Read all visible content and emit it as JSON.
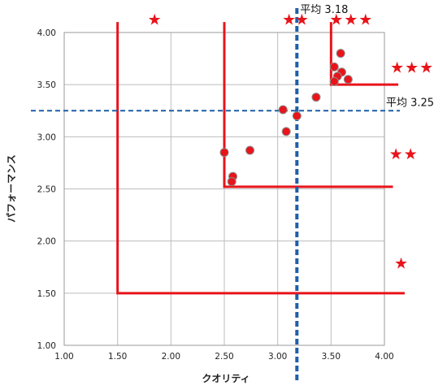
{
  "chart_data": {
    "type": "scatter",
    "xlabel": "クオリティ",
    "ylabel": "パフォーマンス",
    "xlim": [
      1.0,
      4.0
    ],
    "ylim": [
      1.0,
      4.0
    ],
    "x_ticks": [
      "1.00",
      "1.50",
      "2.00",
      "2.50",
      "3.00",
      "3.50",
      "4.00"
    ],
    "y_ticks": [
      "1.00",
      "1.50",
      "2.00",
      "2.50",
      "3.00",
      "3.50",
      "4.00"
    ],
    "grid": true,
    "points": [
      {
        "x": 2.5,
        "y": 2.85
      },
      {
        "x": 2.58,
        "y": 2.62
      },
      {
        "x": 2.57,
        "y": 2.57
      },
      {
        "x": 2.74,
        "y": 2.87
      },
      {
        "x": 3.05,
        "y": 3.26
      },
      {
        "x": 3.08,
        "y": 3.05
      },
      {
        "x": 3.18,
        "y": 3.2
      },
      {
        "x": 3.36,
        "y": 3.38
      },
      {
        "x": 3.53,
        "y": 3.67
      },
      {
        "x": 3.59,
        "y": 3.8
      },
      {
        "x": 3.6,
        "y": 3.62
      },
      {
        "x": 3.56,
        "y": 3.58
      },
      {
        "x": 3.66,
        "y": 3.55
      },
      {
        "x": 3.53,
        "y": 3.53
      }
    ],
    "point_color": "#e8141a",
    "average_lines": [
      {
        "orientation": "vertical",
        "value": 3.18,
        "label": "平均 3.18",
        "color": "#1f5fa8"
      },
      {
        "orientation": "horizontal",
        "value": 3.25,
        "label": "平均 3.25",
        "color": "#1f5fa8"
      }
    ],
    "zone_lines": [
      {
        "x": 1.5,
        "y": 1.5,
        "x_end": 4.19,
        "y_top": 4.1
      },
      {
        "x": 2.5,
        "y": 2.52,
        "x_end": 4.08,
        "y_top": 4.1
      },
      {
        "x": 3.5,
        "y": 3.5,
        "x_end": 4.13,
        "y_top": 4.1
      }
    ],
    "zone_line_color": "#e8141a",
    "ratings": [
      {
        "stars": "★",
        "x": 1.85,
        "y": 4.13
      },
      {
        "stars": "★",
        "x": 3.11,
        "y": 4.13
      },
      {
        "stars": "★",
        "x": 3.23,
        "y": 4.13
      },
      {
        "stars": "★★★",
        "x": 3.69,
        "y": 4.13
      },
      {
        "stars": "★★★",
        "x": 4.26,
        "y": 3.67
      },
      {
        "stars": "★★",
        "x": 4.18,
        "y": 2.84
      },
      {
        "stars": "★",
        "x": 4.16,
        "y": 1.79
      }
    ]
  }
}
